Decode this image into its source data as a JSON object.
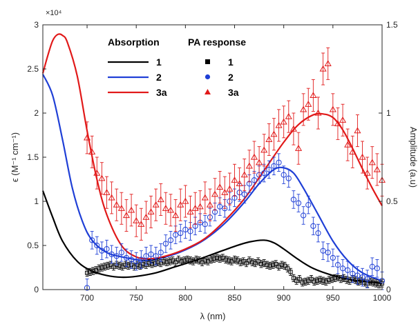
{
  "chart_data": {
    "type": "line",
    "xlabel": "λ (nm)",
    "ylabel_left": "ϵ (M⁻¹ cm⁻¹)",
    "ylabel_right": "Amplitude (a.u)",
    "y_multiplier": "×10⁴",
    "xlim": [
      655,
      1000
    ],
    "ylim_left": [
      0,
      3
    ],
    "ylim_right": [
      0,
      1.5
    ],
    "x_ticks": [
      "700",
      "750",
      "800",
      "850",
      "900",
      "950",
      "1000"
    ],
    "y_left_ticks": [
      "0",
      "0.5",
      "1",
      "1.5",
      "2",
      "2.5",
      "3"
    ],
    "y_right_ticks": [
      "0",
      "0.5",
      "1",
      "1.5"
    ],
    "legend": {
      "absorption_header": "Absorption",
      "pa_header": "PA response",
      "entries": [
        {
          "label": "1",
          "color": "#000000",
          "marker": "square"
        },
        {
          "label": "2",
          "color": "#1f3fd6",
          "marker": "circle"
        },
        {
          "label": "3a",
          "color": "#e11919",
          "marker": "triangle"
        }
      ]
    },
    "absorption_series": [
      {
        "name": "1",
        "color": "#000000",
        "x": [
          655,
          665,
          675,
          690,
          705,
          720,
          735,
          750,
          770,
          790,
          810,
          830,
          850,
          865,
          880,
          890,
          900,
          915,
          930,
          950,
          970,
          985,
          1000
        ],
        "y": [
          1.12,
          0.82,
          0.55,
          0.32,
          0.21,
          0.16,
          0.14,
          0.15,
          0.19,
          0.26,
          0.33,
          0.41,
          0.49,
          0.54,
          0.56,
          0.53,
          0.46,
          0.34,
          0.24,
          0.16,
          0.11,
          0.09,
          0.07
        ]
      },
      {
        "name": "2",
        "color": "#1f3fd6",
        "x": [
          655,
          665,
          675,
          685,
          695,
          705,
          720,
          740,
          760,
          780,
          800,
          820,
          840,
          860,
          875,
          890,
          900,
          910,
          920,
          935,
          950,
          965,
          980,
          1000
        ],
        "y": [
          2.44,
          2.2,
          1.7,
          1.15,
          0.78,
          0.56,
          0.42,
          0.36,
          0.33,
          0.37,
          0.45,
          0.57,
          0.75,
          0.99,
          1.2,
          1.36,
          1.38,
          1.32,
          1.15,
          0.85,
          0.55,
          0.33,
          0.19,
          0.1
        ]
      },
      {
        "name": "3a",
        "color": "#e11919",
        "x": [
          655,
          660,
          665,
          670,
          675,
          680,
          690,
          700,
          710,
          720,
          735,
          750,
          765,
          780,
          800,
          820,
          840,
          860,
          880,
          900,
          915,
          930,
          940,
          950,
          960,
          970,
          980,
          990,
          1000
        ],
        "y": [
          2.45,
          2.65,
          2.82,
          2.89,
          2.88,
          2.8,
          2.42,
          1.8,
          1.25,
          0.85,
          0.5,
          0.37,
          0.35,
          0.38,
          0.46,
          0.58,
          0.78,
          1.03,
          1.35,
          1.67,
          1.87,
          1.98,
          1.99,
          1.95,
          1.81,
          1.6,
          1.37,
          1.15,
          0.95
        ]
      }
    ],
    "pa_series": [
      {
        "name": "1",
        "color": "#000000",
        "marker": "square",
        "x": [
          700,
          703,
          706,
          709,
          712,
          715,
          718,
          721,
          724,
          727,
          730,
          733,
          736,
          739,
          742,
          745,
          748,
          751,
          754,
          757,
          760,
          763,
          766,
          769,
          772,
          775,
          778,
          781,
          784,
          787,
          790,
          793,
          796,
          799,
          802,
          805,
          808,
          811,
          814,
          817,
          820,
          823,
          826,
          829,
          832,
          835,
          838,
          841,
          844,
          847,
          850,
          853,
          856,
          859,
          862,
          865,
          868,
          871,
          874,
          877,
          880,
          883,
          886,
          889,
          892,
          895,
          898,
          901,
          904,
          907,
          910,
          913,
          916,
          919,
          922,
          925,
          928,
          931,
          934,
          937,
          940,
          943,
          946,
          949,
          952,
          955,
          958,
          961,
          964,
          967,
          970,
          973,
          976,
          979,
          982,
          985,
          988,
          991,
          994,
          997,
          1000
        ],
        "y": [
          0.095,
          0.1,
          0.105,
          0.11,
          0.12,
          0.125,
          0.13,
          0.135,
          0.14,
          0.13,
          0.14,
          0.135,
          0.13,
          0.14,
          0.135,
          0.14,
          0.13,
          0.14,
          0.135,
          0.145,
          0.14,
          0.15,
          0.145,
          0.15,
          0.155,
          0.15,
          0.16,
          0.155,
          0.16,
          0.165,
          0.155,
          0.17,
          0.16,
          0.165,
          0.17,
          0.165,
          0.16,
          0.17,
          0.165,
          0.155,
          0.165,
          0.16,
          0.17,
          0.175,
          0.18,
          0.175,
          0.18,
          0.17,
          0.165,
          0.16,
          0.17,
          0.165,
          0.155,
          0.16,
          0.15,
          0.165,
          0.155,
          0.15,
          0.16,
          0.145,
          0.15,
          0.14,
          0.135,
          0.14,
          0.145,
          0.13,
          0.14,
          0.135,
          0.12,
          0.1,
          0.065,
          0.05,
          0.06,
          0.04,
          0.045,
          0.05,
          0.06,
          0.045,
          0.05,
          0.055,
          0.05,
          0.045,
          0.055,
          0.06,
          0.065,
          0.07,
          0.06,
          0.065,
          0.055,
          0.05,
          0.06,
          0.055,
          0.045,
          0.05,
          0.04,
          0.035,
          0.045,
          0.04,
          0.035,
          0.03,
          0.035
        ]
      },
      {
        "name": "2",
        "color": "#1f3fd6",
        "marker": "circle",
        "x": [
          700,
          705,
          710,
          715,
          720,
          725,
          730,
          735,
          740,
          745,
          750,
          755,
          760,
          765,
          770,
          775,
          780,
          785,
          790,
          795,
          800,
          805,
          810,
          815,
          820,
          825,
          830,
          835,
          840,
          845,
          850,
          855,
          860,
          865,
          870,
          875,
          880,
          885,
          890,
          895,
          900,
          905,
          910,
          915,
          920,
          925,
          930,
          935,
          940,
          945,
          950,
          955,
          960,
          965,
          970,
          975,
          980,
          985,
          990,
          995,
          1000
        ],
        "y": [
          0.01,
          0.28,
          0.25,
          0.22,
          0.23,
          0.2,
          0.19,
          0.21,
          0.18,
          0.17,
          0.16,
          0.17,
          0.19,
          0.2,
          0.19,
          0.21,
          0.26,
          0.28,
          0.31,
          0.32,
          0.34,
          0.33,
          0.36,
          0.38,
          0.37,
          0.41,
          0.44,
          0.47,
          0.46,
          0.5,
          0.52,
          0.55,
          0.54,
          0.6,
          0.62,
          0.65,
          0.66,
          0.68,
          0.7,
          0.72,
          0.65,
          0.63,
          0.51,
          0.49,
          0.42,
          0.48,
          0.36,
          0.32,
          0.22,
          0.21,
          0.18,
          0.14,
          0.12,
          0.11,
          0.09,
          0.08,
          0.07,
          0.06,
          0.13,
          0.12,
          0.05
        ]
      },
      {
        "name": "3a",
        "color": "#e11919",
        "marker": "triangle",
        "x": [
          700,
          705,
          710,
          715,
          720,
          725,
          730,
          735,
          740,
          745,
          750,
          755,
          760,
          765,
          770,
          775,
          780,
          785,
          790,
          795,
          800,
          805,
          810,
          815,
          820,
          825,
          830,
          835,
          840,
          845,
          850,
          855,
          860,
          865,
          870,
          875,
          880,
          885,
          890,
          895,
          900,
          905,
          910,
          915,
          920,
          925,
          930,
          935,
          940,
          945,
          950,
          955,
          960,
          965,
          970,
          975,
          980,
          985,
          990,
          995,
          1000
        ],
        "y": [
          0.86,
          0.78,
          0.66,
          0.63,
          0.55,
          0.52,
          0.48,
          0.46,
          0.42,
          0.45,
          0.39,
          0.37,
          0.41,
          0.44,
          0.48,
          0.51,
          0.46,
          0.45,
          0.42,
          0.48,
          0.5,
          0.44,
          0.46,
          0.47,
          0.52,
          0.48,
          0.54,
          0.58,
          0.55,
          0.57,
          0.62,
          0.6,
          0.65,
          0.7,
          0.75,
          0.72,
          0.79,
          0.85,
          0.88,
          0.93,
          0.95,
          0.98,
          0.91,
          0.8,
          1.02,
          1.05,
          1.1,
          1.0,
          1.25,
          1.28,
          1.02,
          0.94,
          0.96,
          0.82,
          0.78,
          0.9,
          0.75,
          0.66,
          0.72,
          0.68,
          0.62
        ]
      }
    ]
  }
}
